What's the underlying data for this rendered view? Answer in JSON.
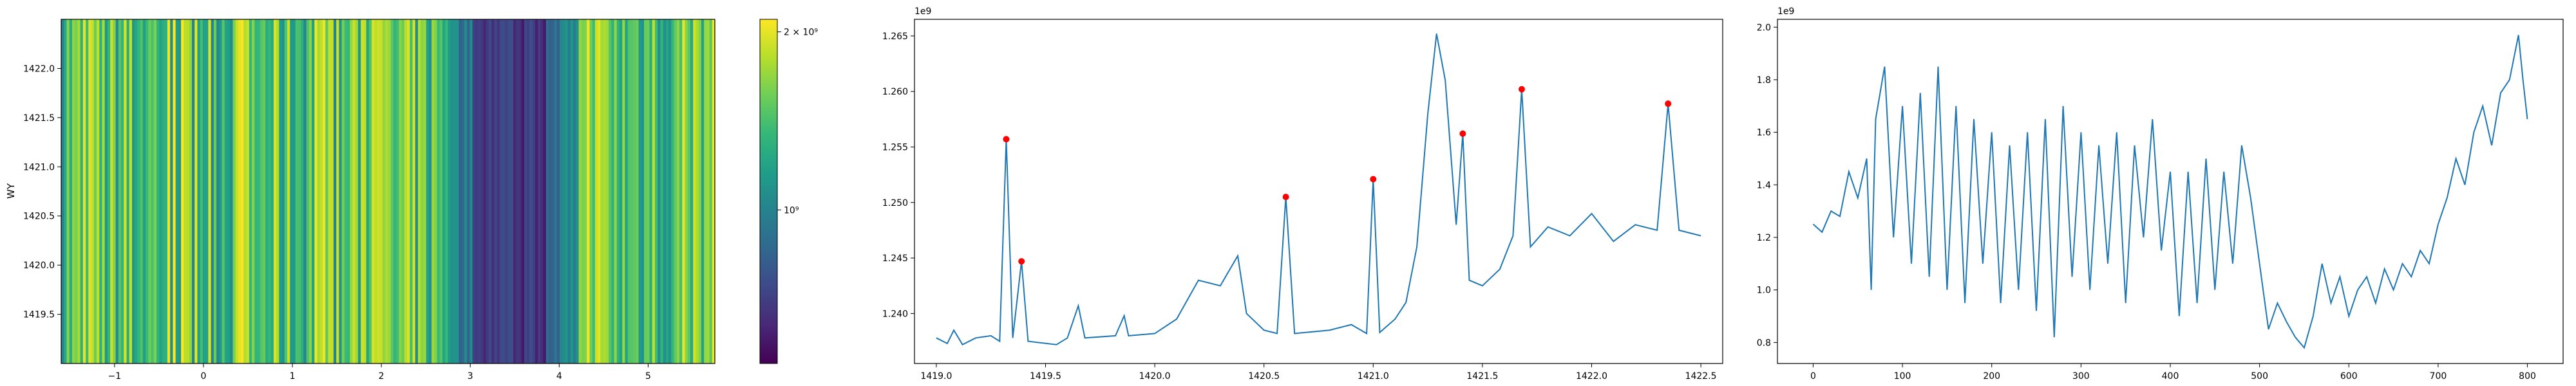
{
  "colors": {
    "line": "#1f77b4",
    "peak": "#ff0000",
    "viridis": [
      "#440154",
      "#482878",
      "#3e4989",
      "#31688e",
      "#26828e",
      "#1f9e89",
      "#35b779",
      "#6ece58",
      "#b5de2b",
      "#fde725"
    ]
  },
  "chart_data": [
    {
      "type": "heatmap",
      "title": "",
      "xlabel": "",
      "ylabel": "WY",
      "xlim": [
        -1.6,
        5.75
      ],
      "ylim": [
        1419.0,
        1422.5
      ],
      "x_ticks": [
        "−1",
        "0",
        "1",
        "2",
        "3",
        "4",
        "5"
      ],
      "y_ticks": [
        "1419.5",
        "1420.0",
        "1420.5",
        "1421.0",
        "1421.5",
        "1422.0"
      ],
      "colorbar": {
        "scale": "log",
        "range": [
          550000000,
          2100000000
        ],
        "tick_labels": [
          "2 × 10⁹",
          "10⁹"
        ],
        "tick_values": [
          2000000000,
          1000000000
        ]
      },
      "note_values": "column intensities vary along x; columns are uniform along y"
    },
    {
      "type": "line",
      "title": "",
      "xlabel": "",
      "ylabel": "",
      "offset_label": "1e9",
      "xlim": [
        1418.9,
        1422.6
      ],
      "ylim": [
        1.2355,
        1.2665
      ],
      "x_ticks": [
        "1419.0",
        "1419.5",
        "1420.0",
        "1420.5",
        "1421.0",
        "1421.5",
        "1422.0",
        "1422.5"
      ],
      "y_ticks": [
        "1.240",
        "1.245",
        "1.250",
        "1.255",
        "1.260",
        "1.265"
      ],
      "series": [
        {
          "points": [
            [
              1419.0,
              1.2378
            ],
            [
              1419.05,
              1.2373
            ],
            [
              1419.08,
              1.2385
            ],
            [
              1419.12,
              1.2372
            ],
            [
              1419.18,
              1.2378
            ],
            [
              1419.25,
              1.238
            ],
            [
              1419.29,
              1.2375
            ],
            [
              1419.32,
              1.2557
            ],
            [
              1419.35,
              1.2378
            ],
            [
              1419.39,
              1.2447
            ],
            [
              1419.42,
              1.2375
            ],
            [
              1419.55,
              1.2372
            ],
            [
              1419.6,
              1.2378
            ],
            [
              1419.65,
              1.2407
            ],
            [
              1419.68,
              1.2378
            ],
            [
              1419.82,
              1.238
            ],
            [
              1419.86,
              1.2398
            ],
            [
              1419.88,
              1.238
            ],
            [
              1420.0,
              1.2382
            ],
            [
              1420.1,
              1.2395
            ],
            [
              1420.2,
              1.243
            ],
            [
              1420.3,
              1.2425
            ],
            [
              1420.38,
              1.2452
            ],
            [
              1420.42,
              1.24
            ],
            [
              1420.5,
              1.2385
            ],
            [
              1420.56,
              1.2382
            ],
            [
              1420.6,
              1.2505
            ],
            [
              1420.64,
              1.2382
            ],
            [
              1420.8,
              1.2385
            ],
            [
              1420.9,
              1.239
            ],
            [
              1420.97,
              1.2382
            ],
            [
              1421.0,
              1.2521
            ],
            [
              1421.03,
              1.2383
            ],
            [
              1421.1,
              1.2395
            ],
            [
              1421.15,
              1.241
            ],
            [
              1421.2,
              1.246
            ],
            [
              1421.25,
              1.258
            ],
            [
              1421.29,
              1.2652
            ],
            [
              1421.33,
              1.261
            ],
            [
              1421.38,
              1.248
            ],
            [
              1421.41,
              1.2562
            ],
            [
              1421.44,
              1.243
            ],
            [
              1421.5,
              1.2425
            ],
            [
              1421.58,
              1.244
            ],
            [
              1421.64,
              1.247
            ],
            [
              1421.68,
              1.2602
            ],
            [
              1421.72,
              1.246
            ],
            [
              1421.8,
              1.2478
            ],
            [
              1421.9,
              1.247
            ],
            [
              1422.0,
              1.249
            ],
            [
              1422.1,
              1.2465
            ],
            [
              1422.2,
              1.248
            ],
            [
              1422.3,
              1.2475
            ],
            [
              1422.35,
              1.2589
            ],
            [
              1422.4,
              1.2475
            ],
            [
              1422.5,
              1.247
            ]
          ]
        }
      ],
      "peaks": [
        [
          1419.32,
          1.2557
        ],
        [
          1419.39,
          1.2447
        ],
        [
          1420.6,
          1.2505
        ],
        [
          1421.0,
          1.2521
        ],
        [
          1421.41,
          1.2562
        ],
        [
          1421.68,
          1.2602
        ],
        [
          1422.35,
          1.2589
        ]
      ]
    },
    {
      "type": "line",
      "title": "",
      "xlabel": "",
      "ylabel": "",
      "offset_label": "1e9",
      "xlim": [
        -40,
        840
      ],
      "ylim": [
        0.72,
        2.03
      ],
      "x_ticks": [
        "0",
        "100",
        "200",
        "300",
        "400",
        "500",
        "600",
        "700",
        "800"
      ],
      "y_ticks": [
        "0.8",
        "1.0",
        "1.2",
        "1.4",
        "1.6",
        "1.8",
        "2.0"
      ],
      "series": [
        {
          "points": [
            [
              0,
              1.25
            ],
            [
              10,
              1.22
            ],
            [
              20,
              1.3
            ],
            [
              30,
              1.28
            ],
            [
              40,
              1.45
            ],
            [
              50,
              1.35
            ],
            [
              60,
              1.5
            ],
            [
              65,
              1.0
            ],
            [
              70,
              1.65
            ],
            [
              80,
              1.85
            ],
            [
              90,
              1.2
            ],
            [
              100,
              1.7
            ],
            [
              110,
              1.1
            ],
            [
              120,
              1.75
            ],
            [
              130,
              1.05
            ],
            [
              140,
              1.85
            ],
            [
              150,
              1.0
            ],
            [
              160,
              1.7
            ],
            [
              170,
              0.95
            ],
            [
              180,
              1.65
            ],
            [
              190,
              1.1
            ],
            [
              200,
              1.6
            ],
            [
              210,
              0.95
            ],
            [
              220,
              1.55
            ],
            [
              230,
              1.0
            ],
            [
              240,
              1.6
            ],
            [
              250,
              0.92
            ],
            [
              260,
              1.65
            ],
            [
              270,
              0.82
            ],
            [
              280,
              1.7
            ],
            [
              290,
              1.05
            ],
            [
              300,
              1.6
            ],
            [
              310,
              1.0
            ],
            [
              320,
              1.55
            ],
            [
              330,
              1.1
            ],
            [
              340,
              1.6
            ],
            [
              350,
              0.95
            ],
            [
              360,
              1.55
            ],
            [
              370,
              1.2
            ],
            [
              380,
              1.65
            ],
            [
              390,
              1.15
            ],
            [
              400,
              1.45
            ],
            [
              410,
              0.9
            ],
            [
              420,
              1.45
            ],
            [
              430,
              0.95
            ],
            [
              440,
              1.5
            ],
            [
              450,
              1.0
            ],
            [
              460,
              1.45
            ],
            [
              470,
              1.1
            ],
            [
              480,
              1.55
            ],
            [
              490,
              1.35
            ],
            [
              500,
              1.1
            ],
            [
              510,
              0.85
            ],
            [
              520,
              0.95
            ],
            [
              530,
              0.88
            ],
            [
              540,
              0.82
            ],
            [
              550,
              0.78
            ],
            [
              560,
              0.9
            ],
            [
              570,
              1.1
            ],
            [
              580,
              0.95
            ],
            [
              590,
              1.05
            ],
            [
              600,
              0.9
            ],
            [
              610,
              1.0
            ],
            [
              620,
              1.05
            ],
            [
              630,
              0.95
            ],
            [
              640,
              1.08
            ],
            [
              650,
              1.0
            ],
            [
              660,
              1.1
            ],
            [
              670,
              1.05
            ],
            [
              680,
              1.15
            ],
            [
              690,
              1.1
            ],
            [
              700,
              1.25
            ],
            [
              710,
              1.35
            ],
            [
              720,
              1.5
            ],
            [
              730,
              1.4
            ],
            [
              740,
              1.6
            ],
            [
              750,
              1.7
            ],
            [
              760,
              1.55
            ],
            [
              770,
              1.75
            ],
            [
              780,
              1.8
            ],
            [
              790,
              1.97
            ],
            [
              795,
              1.8
            ],
            [
              800,
              1.65
            ]
          ]
        }
      ]
    }
  ]
}
